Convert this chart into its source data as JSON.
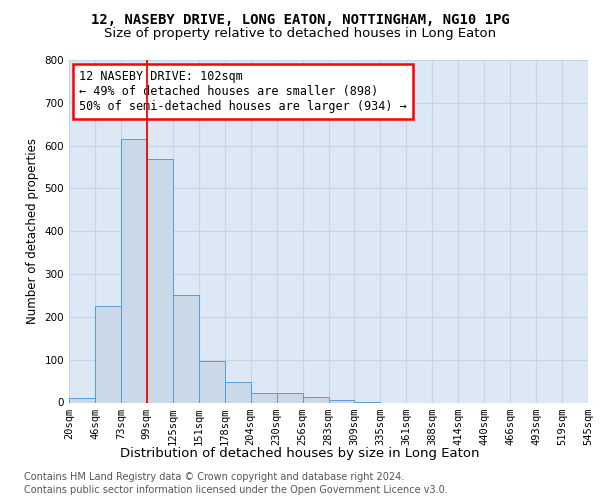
{
  "title": "12, NASEBY DRIVE, LONG EATON, NOTTINGHAM, NG10 1PG",
  "subtitle": "Size of property relative to detached houses in Long Eaton",
  "xlabel": "Distribution of detached houses by size in Long Eaton",
  "ylabel": "Number of detached properties",
  "bar_values": [
    10,
    225,
    615,
    568,
    252,
    96,
    49,
    22,
    22,
    14,
    6,
    2,
    0,
    0,
    0,
    0,
    0,
    0,
    0,
    0
  ],
  "bin_labels": [
    "20sqm",
    "46sqm",
    "73sqm",
    "99sqm",
    "125sqm",
    "151sqm",
    "178sqm",
    "204sqm",
    "230sqm",
    "256sqm",
    "283sqm",
    "309sqm",
    "335sqm",
    "361sqm",
    "388sqm",
    "414sqm",
    "440sqm",
    "466sqm",
    "493sqm",
    "519sqm",
    "545sqm"
  ],
  "bar_color": "#c9d9e8",
  "bar_edge_color": "#5b9bd5",
  "vline_x": 2.5,
  "annotation_text": "12 NASEBY DRIVE: 102sqm\n← 49% of detached houses are smaller (898)\n50% of semi-detached houses are larger (934) →",
  "annotation_box_color": "white",
  "annotation_box_edge_color": "red",
  "ylim": [
    0,
    800
  ],
  "yticks": [
    0,
    100,
    200,
    300,
    400,
    500,
    600,
    700,
    800
  ],
  "grid_color": "#c5d5e5",
  "background_color": "#dce8f4",
  "footer_line1": "Contains HM Land Registry data © Crown copyright and database right 2024.",
  "footer_line2": "Contains public sector information licensed under the Open Government Licence v3.0.",
  "title_fontsize": 10,
  "subtitle_fontsize": 9.5,
  "xlabel_fontsize": 9.5,
  "ylabel_fontsize": 8.5,
  "tick_fontsize": 7.5,
  "annotation_fontsize": 8.5,
  "footer_fontsize": 7
}
